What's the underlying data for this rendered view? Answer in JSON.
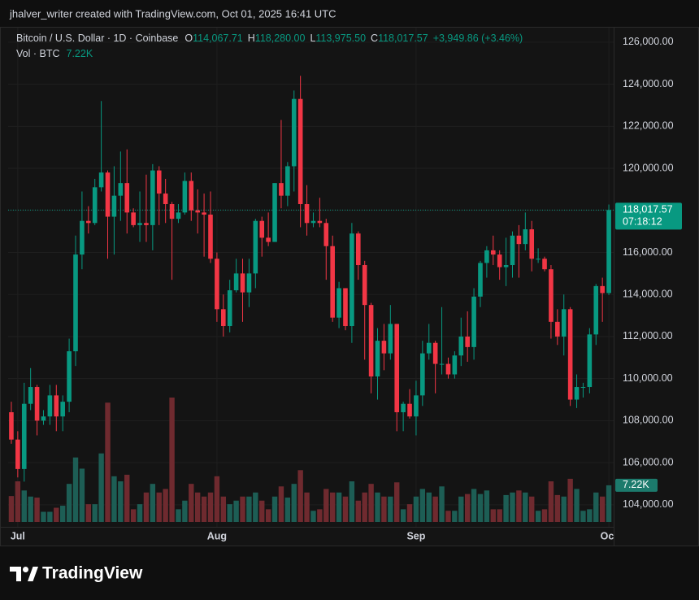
{
  "chart_data": {
    "type": "candlestick",
    "attribution": "jhalver_writer created with TradingView.com, Oct 01, 2025 16:41 UTC",
    "symbol": "Bitcoin / U.S. Dollar · 1D · Coinbase",
    "ohlc_labels": [
      {
        "key": "O",
        "label": "114,067.71"
      },
      {
        "key": "H",
        "label": "118,280.00"
      },
      {
        "key": "L",
        "label": "113,975.50"
      },
      {
        "key": "C",
        "label": "118,017.57"
      }
    ],
    "change_label": "+3,949.86 (+3.46%)",
    "last_price_label": "118,017.57",
    "countdown": "07:18:12",
    "brand": "TradingView",
    "up_color": "#089981",
    "down_color": "#f23645",
    "volume_up_color": "#1d5e55",
    "volume_down_color": "#6f2a2f",
    "grid": true,
    "open": [
      108400,
      107100,
      105700,
      108800,
      109600,
      108000,
      108200,
      109200,
      108200,
      108900,
      111300,
      115900,
      117500,
      117400,
      119100,
      119800,
      117700,
      118700,
      119300,
      117900,
      117300,
      117400,
      117300,
      119900,
      118800,
      118300,
      117600,
      117900,
      119400,
      118000,
      117900,
      117800,
      115700,
      113300,
      112500,
      114200,
      115000,
      114100,
      115000,
      117500,
      116700,
      116500,
      119300,
      118700,
      120100,
      123300,
      118300,
      117400,
      117500,
      117400,
      116300,
      112900,
      114300,
      112500,
      116900,
      115400,
      113500,
      110100,
      111800,
      111200,
      112600,
      108400,
      108800,
      108200,
      109200,
      111200,
      111700,
      110700,
      110700,
      110200,
      111100,
      112000,
      111500,
      113900,
      115500,
      116100,
      115900,
      115300,
      115400,
      116800,
      116400,
      117100,
      115700,
      115700,
      115200,
      112700,
      112000,
      113300,
      109000,
      109600,
      109600,
      112100,
      114400,
      114067.71
    ],
    "high": [
      108900,
      107500,
      109800,
      110500,
      109700,
      108500,
      109700,
      109700,
      109200,
      111900,
      116800,
      118900,
      118200,
      119500,
      123200,
      119900,
      120100,
      120800,
      120900,
      118100,
      118900,
      119700,
      120200,
      120100,
      119500,
      118400,
      118300,
      119800,
      119800,
      119000,
      118800,
      118900,
      116000,
      114000,
      114700,
      115700,
      115700,
      115700,
      117600,
      117700,
      117900,
      119300,
      122300,
      120300,
      123700,
      124400,
      119200,
      117900,
      118600,
      117600,
      116800,
      114600,
      114300,
      117400,
      117000,
      115600,
      113600,
      112400,
      112600,
      113500,
      112600,
      108900,
      109500,
      109900,
      111800,
      112600,
      111800,
      113400,
      111000,
      111300,
      112900,
      113200,
      114300,
      115600,
      116300,
      116800,
      116100,
      116700,
      117000,
      117300,
      117900,
      117500,
      116200,
      115800,
      115400,
      113300,
      114000,
      113400,
      110200,
      109800,
      112400,
      114500,
      114800,
      118280
    ],
    "low": [
      106900,
      105300,
      105100,
      108500,
      107300,
      107800,
      107800,
      107500,
      107500,
      108400,
      110600,
      115200,
      116900,
      117300,
      118900,
      115700,
      115900,
      117500,
      116900,
      117200,
      116500,
      116500,
      116100,
      117300,
      117400,
      114700,
      117400,
      117800,
      117500,
      116900,
      115800,
      115500,
      112700,
      112000,
      112200,
      114100,
      112700,
      113400,
      114300,
      115800,
      116300,
      116500,
      118100,
      118200,
      118900,
      117200,
      116800,
      117200,
      117200,
      114700,
      112700,
      112400,
      112300,
      111700,
      114700,
      110900,
      109300,
      109000,
      110400,
      110900,
      107500,
      107500,
      108100,
      107300,
      108700,
      110900,
      109300,
      110200,
      110000,
      110000,
      110600,
      110800,
      110900,
      113400,
      114800,
      115400,
      114700,
      114400,
      114800,
      114800,
      116100,
      115100,
      115500,
      115100,
      111900,
      111600,
      111100,
      108700,
      108600,
      109100,
      109300,
      111600,
      112700,
      113975.5
    ],
    "close": [
      107100,
      105700,
      108800,
      109600,
      108000,
      108200,
      109200,
      108200,
      108900,
      111300,
      115900,
      117500,
      117400,
      119100,
      119800,
      117700,
      118700,
      119300,
      117900,
      117300,
      117400,
      117300,
      119900,
      118800,
      118300,
      117600,
      117900,
      119400,
      118000,
      117900,
      117800,
      115700,
      113300,
      112500,
      114200,
      115000,
      114100,
      115000,
      117500,
      116700,
      116500,
      119300,
      118700,
      120100,
      123300,
      118300,
      117400,
      117500,
      117400,
      116300,
      112900,
      114300,
      112500,
      116900,
      115400,
      113500,
      110100,
      111800,
      111200,
      112600,
      108400,
      108800,
      108200,
      109200,
      111200,
      111700,
      110700,
      110700,
      110200,
      111100,
      112000,
      111500,
      113900,
      115500,
      116100,
      115900,
      115300,
      115400,
      116800,
      116400,
      117100,
      115700,
      115700,
      115200,
      112700,
      112000,
      113300,
      109000,
      109600,
      109600,
      112100,
      114400,
      114067.71,
      118017.57
    ],
    "volume": {
      "name": "Vol · BTC",
      "last_label": "7.22K",
      "values": [
        5100,
        8000,
        6200,
        5000,
        4800,
        2000,
        2000,
        2800,
        3200,
        7500,
        12700,
        10500,
        3500,
        3500,
        13500,
        23500,
        9000,
        8000,
        9300,
        2500,
        3500,
        5800,
        7500,
        5800,
        6500,
        24500,
        2500,
        4200,
        7500,
        5800,
        5000,
        5800,
        9000,
        5000,
        3500,
        4200,
        5000,
        5000,
        5800,
        4200,
        2500,
        5000,
        7000,
        4800,
        7500,
        10200,
        5800,
        2200,
        2500,
        6500,
        5800,
        5800,
        5000,
        8000,
        4200,
        5800,
        7500,
        5800,
        5000,
        5000,
        7800,
        2500,
        3500,
        5000,
        6500,
        5800,
        5000,
        7000,
        2200,
        2200,
        5000,
        5500,
        6500,
        5500,
        6200,
        2500,
        2500,
        5300,
        5800,
        6200,
        5800,
        5000,
        2200,
        2500,
        8000,
        5300,
        5000,
        8500,
        6500,
        2200,
        2500,
        5800,
        5000,
        7220
      ]
    },
    "xlim": [
      -0.5,
      93.75
    ],
    "xticks": [
      {
        "value": 1,
        "label": "Jul"
      },
      {
        "value": 32,
        "label": "Aug"
      },
      {
        "value": 63,
        "label": "Sep"
      },
      {
        "value": 93,
        "label": "Oct"
      }
    ],
    "ylim": [
      102950,
      126730
    ],
    "yticks": [
      {
        "value": 104000,
        "label": "104,000.00"
      },
      {
        "value": 106000,
        "label": "106,000.00"
      },
      {
        "value": 108000,
        "label": "108,000.00"
      },
      {
        "value": 110000,
        "label": "110,000.00"
      },
      {
        "value": 112000,
        "label": "112,000.00"
      },
      {
        "value": 114000,
        "label": "114,000.00"
      },
      {
        "value": 116000,
        "label": "116,000.00"
      },
      {
        "value": 118000,
        "label": "118,000.00"
      },
      {
        "value": 120000,
        "label": "120,000.00"
      },
      {
        "value": 122000,
        "label": "122,000.00"
      },
      {
        "value": 124000,
        "label": "124,000.00"
      },
      {
        "value": 126000,
        "label": "126,000.00"
      }
    ]
  }
}
